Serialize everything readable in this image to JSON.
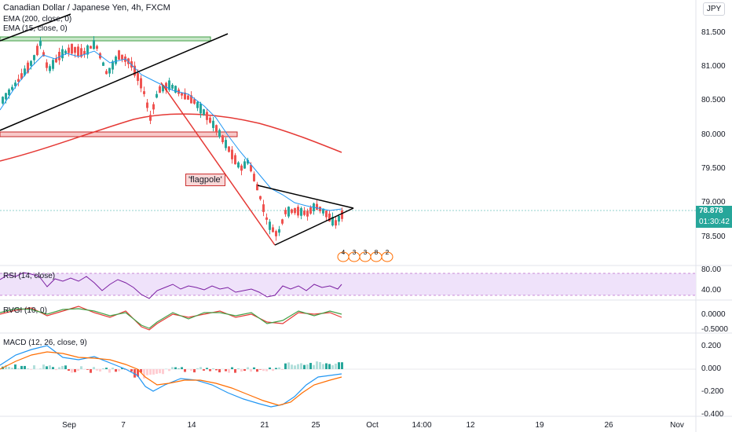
{
  "header": {
    "title": "Canadian Dollar / Japanese Yen, 4h, FXCM",
    "currency_button": "JPY",
    "indicators": [
      "EMA (200, close, 0)",
      "EMA (15, close, 0)"
    ]
  },
  "price_axis": {
    "ticks": [
      "81.500",
      "81.000",
      "80.500",
      "80.000",
      "79.500",
      "79.000",
      "78.500"
    ],
    "current_price": "78.878",
    "countdown": "01:30:42"
  },
  "annotation": {
    "label": "'flagpole'"
  },
  "event_badges": [
    "4",
    "3",
    "3",
    "8",
    "2"
  ],
  "panes": {
    "rsi": {
      "label": "RSI (14, close)",
      "ticks": [
        "80.00",
        "40.00"
      ]
    },
    "rvgi": {
      "label": "RVGI (10, 0)",
      "ticks": [
        "0.0000",
        "-0.5000"
      ]
    },
    "macd": {
      "label": "MACD (12, 26, close, 9)",
      "ticks": [
        "0.200",
        "0.000",
        "-0.200",
        "-0.400"
      ]
    }
  },
  "time_axis": {
    "ticks": [
      "Sep",
      "7",
      "14",
      "21",
      "25",
      "Oct",
      "14:00",
      "12",
      "19",
      "26",
      "Nov"
    ]
  },
  "colors": {
    "up": "#26a69a",
    "down": "#ef5350",
    "ema15": "#2196f3",
    "ema200": "#e53935",
    "rsi_line": "#7b1fa2",
    "rsi_band": "#efe2fa",
    "price_tag": "#26a69a",
    "countdown_tag": "#26a69a"
  }
}
